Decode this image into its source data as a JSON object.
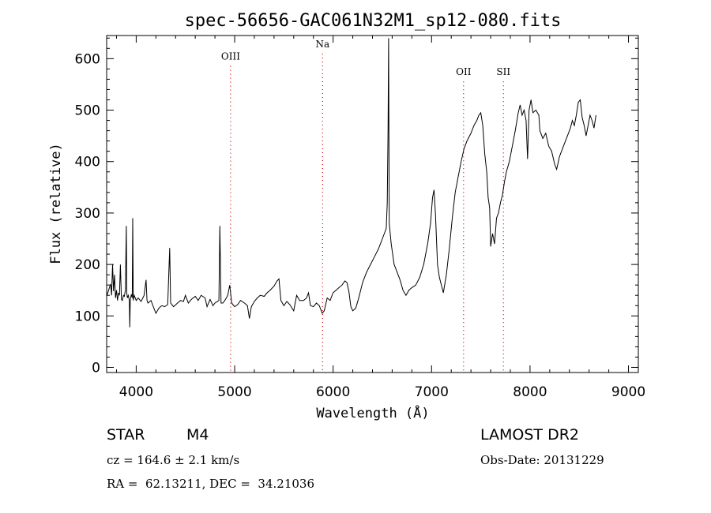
{
  "chart_data": {
    "type": "line",
    "title": "spec-56656-GAC061N32M1_sp12-080.fits",
    "xlabel": "Wavelength (Å)",
    "ylabel": "Flux (relative)",
    "xlim": [
      3700,
      9100
    ],
    "ylim": [
      -10,
      645
    ],
    "x_ticks": [
      4000,
      5000,
      6000,
      7000,
      8000,
      9000
    ],
    "y_ticks": [
      0,
      100,
      200,
      300,
      400,
      500,
      600
    ],
    "grid": false,
    "legend": "none",
    "reference_lines": [
      {
        "label": "OIII",
        "x": 4959,
        "label_flux": 598
      },
      {
        "label": "Na",
        "x": 5893,
        "label_flux": 622
      },
      {
        "label": "OII",
        "x": 7325,
        "label_flux": 568
      },
      {
        "label": "SII",
        "x": 7730,
        "label_flux": 568
      }
    ],
    "series": [
      {
        "values": [
          [
            3700,
            138
          ],
          [
            3720,
            150
          ],
          [
            3740,
            162
          ],
          [
            3750,
            140
          ],
          [
            3760,
            200
          ],
          [
            3770,
            148
          ],
          [
            3780,
            180
          ],
          [
            3790,
            135
          ],
          [
            3800,
            150
          ],
          [
            3810,
            130
          ],
          [
            3820,
            145
          ],
          [
            3830,
            140
          ],
          [
            3840,
            200
          ],
          [
            3850,
            132
          ],
          [
            3860,
            130
          ],
          [
            3870,
            140
          ],
          [
            3880,
            138
          ],
          [
            3890,
            150
          ],
          [
            3900,
            275
          ],
          [
            3905,
            145
          ],
          [
            3910,
            135
          ],
          [
            3920,
            140
          ],
          [
            3930,
            130
          ],
          [
            3935,
            78
          ],
          [
            3940,
            130
          ],
          [
            3950,
            142
          ],
          [
            3960,
            135
          ],
          [
            3965,
            290
          ],
          [
            3970,
            130
          ],
          [
            3980,
            140
          ],
          [
            4000,
            130
          ],
          [
            4020,
            135
          ],
          [
            4050,
            128
          ],
          [
            4080,
            140
          ],
          [
            4100,
            170
          ],
          [
            4110,
            130
          ],
          [
            4120,
            125
          ],
          [
            4150,
            130
          ],
          [
            4180,
            115
          ],
          [
            4200,
            105
          ],
          [
            4230,
            115
          ],
          [
            4260,
            120
          ],
          [
            4290,
            118
          ],
          [
            4320,
            122
          ],
          [
            4340,
            232
          ],
          [
            4350,
            125
          ],
          [
            4380,
            118
          ],
          [
            4420,
            125
          ],
          [
            4450,
            130
          ],
          [
            4480,
            128
          ],
          [
            4500,
            140
          ],
          [
            4530,
            125
          ],
          [
            4560,
            132
          ],
          [
            4600,
            138
          ],
          [
            4630,
            130
          ],
          [
            4660,
            140
          ],
          [
            4700,
            135
          ],
          [
            4720,
            118
          ],
          [
            4750,
            132
          ],
          [
            4780,
            120
          ],
          [
            4800,
            125
          ],
          [
            4840,
            130
          ],
          [
            4850,
            275
          ],
          [
            4862,
            125
          ],
          [
            4880,
            125
          ],
          [
            4900,
            130
          ],
          [
            4930,
            140
          ],
          [
            4950,
            160
          ],
          [
            4970,
            125
          ],
          [
            5000,
            118
          ],
          [
            5030,
            122
          ],
          [
            5060,
            130
          ],
          [
            5100,
            125
          ],
          [
            5130,
            120
          ],
          [
            5150,
            95
          ],
          [
            5170,
            118
          ],
          [
            5200,
            128
          ],
          [
            5230,
            135
          ],
          [
            5260,
            140
          ],
          [
            5300,
            138
          ],
          [
            5330,
            145
          ],
          [
            5360,
            150
          ],
          [
            5400,
            158
          ],
          [
            5430,
            168
          ],
          [
            5450,
            172
          ],
          [
            5470,
            130
          ],
          [
            5500,
            120
          ],
          [
            5530,
            128
          ],
          [
            5560,
            122
          ],
          [
            5600,
            110
          ],
          [
            5630,
            140
          ],
          [
            5660,
            130
          ],
          [
            5700,
            130
          ],
          [
            5730,
            135
          ],
          [
            5750,
            145
          ],
          [
            5770,
            120
          ],
          [
            5800,
            118
          ],
          [
            5830,
            125
          ],
          [
            5860,
            120
          ],
          [
            5890,
            105
          ],
          [
            5910,
            110
          ],
          [
            5940,
            135
          ],
          [
            5970,
            130
          ],
          [
            6000,
            145
          ],
          [
            6030,
            150
          ],
          [
            6060,
            155
          ],
          [
            6090,
            160
          ],
          [
            6120,
            168
          ],
          [
            6140,
            165
          ],
          [
            6160,
            148
          ],
          [
            6180,
            118
          ],
          [
            6200,
            110
          ],
          [
            6230,
            115
          ],
          [
            6260,
            135
          ],
          [
            6300,
            165
          ],
          [
            6340,
            185
          ],
          [
            6380,
            200
          ],
          [
            6420,
            215
          ],
          [
            6460,
            230
          ],
          [
            6500,
            250
          ],
          [
            6540,
            270
          ],
          [
            6550,
            320
          ],
          [
            6558,
            460
          ],
          [
            6564,
            640
          ],
          [
            6570,
            280
          ],
          [
            6590,
            240
          ],
          [
            6620,
            200
          ],
          [
            6650,
            185
          ],
          [
            6680,
            170
          ],
          [
            6710,
            150
          ],
          [
            6740,
            140
          ],
          [
            6770,
            150
          ],
          [
            6800,
            155
          ],
          [
            6840,
            160
          ],
          [
            6880,
            175
          ],
          [
            6920,
            200
          ],
          [
            6960,
            240
          ],
          [
            6990,
            280
          ],
          [
            7010,
            330
          ],
          [
            7025,
            345
          ],
          [
            7040,
            295
          ],
          [
            7060,
            200
          ],
          [
            7080,
            175
          ],
          [
            7100,
            160
          ],
          [
            7120,
            145
          ],
          [
            7150,
            180
          ],
          [
            7180,
            230
          ],
          [
            7210,
            290
          ],
          [
            7240,
            340
          ],
          [
            7270,
            370
          ],
          [
            7300,
            400
          ],
          [
            7330,
            425
          ],
          [
            7360,
            440
          ],
          [
            7400,
            455
          ],
          [
            7430,
            470
          ],
          [
            7460,
            480
          ],
          [
            7480,
            490
          ],
          [
            7500,
            495
          ],
          [
            7520,
            470
          ],
          [
            7540,
            415
          ],
          [
            7560,
            380
          ],
          [
            7575,
            330
          ],
          [
            7590,
            310
          ],
          [
            7600,
            235
          ],
          [
            7620,
            260
          ],
          [
            7640,
            240
          ],
          [
            7660,
            290
          ],
          [
            7680,
            300
          ],
          [
            7700,
            320
          ],
          [
            7720,
            335
          ],
          [
            7740,
            360
          ],
          [
            7760,
            380
          ],
          [
            7790,
            400
          ],
          [
            7820,
            430
          ],
          [
            7850,
            460
          ],
          [
            7880,
            495
          ],
          [
            7900,
            510
          ],
          [
            7920,
            490
          ],
          [
            7940,
            500
          ],
          [
            7960,
            480
          ],
          [
            7975,
            405
          ],
          [
            7990,
            500
          ],
          [
            8010,
            520
          ],
          [
            8030,
            495
          ],
          [
            8060,
            500
          ],
          [
            8090,
            490
          ],
          [
            8100,
            460
          ],
          [
            8130,
            445
          ],
          [
            8160,
            455
          ],
          [
            8190,
            430
          ],
          [
            8220,
            420
          ],
          [
            8250,
            395
          ],
          [
            8270,
            385
          ],
          [
            8300,
            410
          ],
          [
            8330,
            425
          ],
          [
            8360,
            440
          ],
          [
            8390,
            455
          ],
          [
            8410,
            465
          ],
          [
            8430,
            480
          ],
          [
            8450,
            470
          ],
          [
            8470,
            490
          ],
          [
            8490,
            515
          ],
          [
            8510,
            520
          ],
          [
            8530,
            485
          ],
          [
            8550,
            470
          ],
          [
            8570,
            450
          ],
          [
            8590,
            470
          ],
          [
            8610,
            490
          ],
          [
            8630,
            480
          ],
          [
            8650,
            465
          ],
          [
            8670,
            490
          ]
        ]
      }
    ]
  },
  "info": {
    "object_class": "STAR",
    "subclass": "M4",
    "redshift": "cz = 164.6 ± 2.1 km/s",
    "coords": "RA =  62.13211, DEC =  34.21036",
    "survey": "LAMOST DR2",
    "obs_date": "Obs-Date: 20131229"
  }
}
